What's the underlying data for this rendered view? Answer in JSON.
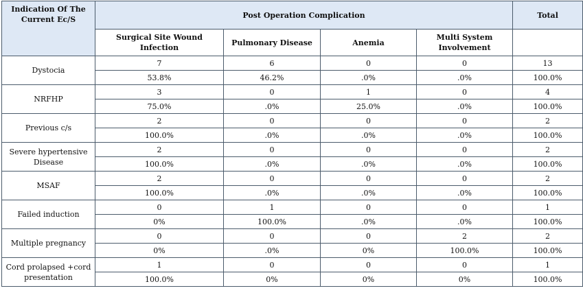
{
  "header": {
    "indication": "Indication Of The Current Ec/S",
    "post_op": "Post Operation  Complication",
    "total": "Total",
    "col_ssi": "Surgical  Site Wound Infection",
    "col_pulm": "Pulmonary Disease",
    "col_anemia": "Anemia",
    "col_multi": "Multi System Involvement"
  },
  "rows": [
    {
      "label": "Dystocia",
      "counts": [
        "7",
        "6",
        "0",
        "0",
        "13"
      ],
      "percents": [
        "53.8%",
        "46.2%",
        ".0%",
        ".0%",
        "100.0%"
      ]
    },
    {
      "label": "NRFHP",
      "counts": [
        "3",
        "0",
        "1",
        "0",
        "4"
      ],
      "percents": [
        "75.0%",
        ".0%",
        "25.0%",
        ".0%",
        "100.0%"
      ]
    },
    {
      "label": "Previous c/s",
      "counts": [
        "2",
        "0",
        "0",
        "0",
        "2"
      ],
      "percents": [
        "100.0%",
        ".0%",
        ".0%",
        ".0%",
        "100.0%"
      ]
    },
    {
      "label": "Severe hypertensive Disease",
      "counts": [
        "2",
        "0",
        "0",
        "0",
        "2"
      ],
      "percents": [
        "100.0%",
        ".0%",
        ".0%",
        ".0%",
        "100.0%"
      ]
    },
    {
      "label": "MSAF",
      "counts": [
        "2",
        "0",
        "0",
        "0",
        "2"
      ],
      "percents": [
        "100.0%",
        ".0%",
        ".0%",
        ".0%",
        "100.0%"
      ]
    },
    {
      "label": "Failed induction",
      "counts": [
        "0",
        "1",
        "0",
        "0",
        "1"
      ],
      "percents": [
        "0%",
        "100.0%",
        ".0%",
        ".0%",
        "100.0%"
      ]
    },
    {
      "label": "Multiple pregnancy",
      "counts": [
        "0",
        "0",
        "0",
        "2",
        "2"
      ],
      "percents": [
        "0%",
        ".0%",
        "0%",
        "100.0%",
        "100.0%"
      ]
    },
    {
      "label": "Cord prolapsed +cord presentation",
      "counts": [
        "1",
        "0",
        "0",
        "0",
        "1"
      ],
      "percents": [
        "100.0%",
        "0%",
        "0%",
        "0%",
        "100.0%"
      ]
    }
  ]
}
